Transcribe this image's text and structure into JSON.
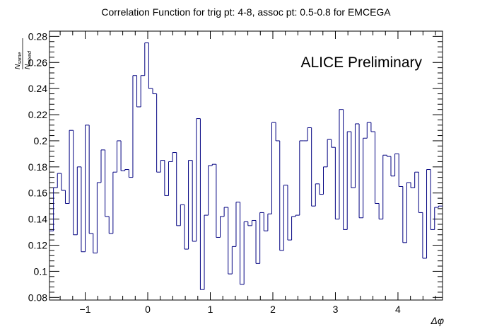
{
  "chart_data": {
    "type": "histogram",
    "title": "Correlation Function for trig pt: 4-8, assoc pt: 0.5-0.8 for EMCEGA",
    "xlabel": "Δφ",
    "ylabel_num": "N",
    "ylabel_num_sub": "same",
    "ylabel_den": "N",
    "ylabel_den_sub": "mixed",
    "annotation": "ALICE Preliminary",
    "xlim": [
      -1.5708,
      4.7124
    ],
    "ylim": [
      0.078,
      0.284
    ],
    "x_ticks": [
      -1,
      0,
      1,
      2,
      3,
      4
    ],
    "x_tick_labels": [
      "−1",
      "0",
      "1",
      "2",
      "3",
      "4"
    ],
    "y_ticks": [
      0.08,
      0.1,
      0.12,
      0.14,
      0.16,
      0.18,
      0.2,
      0.22,
      0.24,
      0.26,
      0.28
    ],
    "y_tick_labels": [
      "0.08",
      "0.1",
      "0.12",
      "0.14",
      "0.16",
      "0.18",
      "0.2",
      "0.22",
      "0.24",
      "0.26",
      "0.28"
    ],
    "line_color": "#000080",
    "grid": false,
    "values": [
      0.131,
      0.164,
      0.175,
      0.162,
      0.152,
      0.208,
      0.128,
      0.18,
      0.115,
      0.212,
      0.129,
      0.114,
      0.168,
      0.193,
      0.142,
      0.129,
      0.176,
      0.2,
      0.177,
      0.178,
      0.172,
      0.25,
      0.226,
      0.25,
      0.275,
      0.24,
      0.236,
      0.176,
      0.185,
      0.158,
      0.184,
      0.191,
      0.135,
      0.151,
      0.117,
      0.185,
      0.123,
      0.217,
      0.086,
      0.143,
      0.181,
      0.182,
      0.126,
      0.142,
      0.149,
      0.098,
      0.119,
      0.153,
      0.09,
      0.138,
      0.135,
      0.139,
      0.106,
      0.145,
      0.131,
      0.144,
      0.214,
      0.2,
      0.116,
      0.166,
      0.124,
      0.142,
      0.143,
      0.2,
      0.2,
      0.21,
      0.15,
      0.167,
      0.159,
      0.18,
      0.201,
      0.195,
      0.14,
      0.224,
      0.132,
      0.207,
      0.164,
      0.213,
      0.141,
      0.202,
      0.214,
      0.207,
      0.152,
      0.14,
      0.189,
      0.188,
      0.173,
      0.19,
      0.165,
      0.122,
      0.168,
      0.164,
      0.176,
      0.145,
      0.11,
      0.178,
      0.132,
      0.149,
      0.15
    ]
  }
}
